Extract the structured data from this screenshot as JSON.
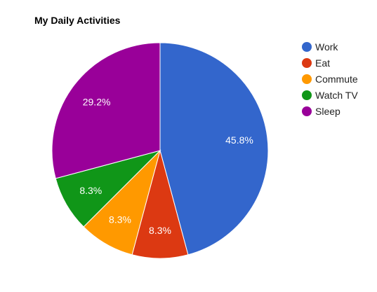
{
  "chart_data": {
    "type": "pie",
    "title": "My Daily Activities",
    "legend_position": "right",
    "start_angle_deg": 0,
    "direction": "clockwise",
    "slices": [
      {
        "label": "Work",
        "value": 11,
        "percent_label": "45.8%",
        "color": "#3366cc"
      },
      {
        "label": "Eat",
        "value": 2,
        "percent_label": "8.3%",
        "color": "#dc3912"
      },
      {
        "label": "Commute",
        "value": 2,
        "percent_label": "8.3%",
        "color": "#ff9900"
      },
      {
        "label": "Watch TV",
        "value": 2,
        "percent_label": "8.3%",
        "color": "#109618"
      },
      {
        "label": "Sleep",
        "value": 7,
        "percent_label": "29.2%",
        "color": "#990099"
      }
    ]
  }
}
